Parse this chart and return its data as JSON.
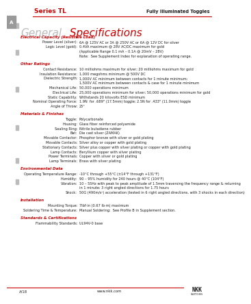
{
  "header_series": "Series TL",
  "header_right": "Fully Illuminated Toggles",
  "tab_label": "A",
  "red_color": "#cc0000",
  "dark_color": "#1a1a1a",
  "gray_color": "#888888",
  "light_gray": "#cccccc",
  "bg_color": "#ffffff",
  "general_gray": "#bbbbbb",
  "general_red": "#cc0000",
  "sections": [
    {
      "title": "Electrical Capacity (Resistive Load)",
      "entries": [
        [
          "Power Level (silver):",
          "6A @ 125V AC or 3A @ 250V AC or 6A @ 12V DC for silver"
        ],
        [
          "Logic Level (gold):",
          "0.4VA maximum @ 28V AC/DC maximum for gold"
        ],
        [
          "",
          "(Applicable Range 0.1 mA – 0.1A @ 20mV – 28V)"
        ],
        [
          "",
          "Note:  See Supplement Index for explanation of operating range."
        ]
      ]
    },
    {
      "title": "Other Ratings",
      "entries": [
        [
          "Contact Resistance:",
          "10 milliohms maximum for silver; 20 milliohms maximum for gold"
        ],
        [
          "Insulation Resistance:",
          "1,000 megohms minimum @ 500V DC"
        ],
        [
          "Dielectric Strength:",
          "1,000V AC minimum between contacts for 1 minute minimum;"
        ],
        [
          "",
          "1,500V AC minimum between contacts & case for 1 minute minimum"
        ],
        [
          "Mechanical Life:",
          "50,000 operations minimum"
        ],
        [
          "Electrical Life:",
          "25,000 operations minimum for silver; 50,000 operations minimum for gold"
        ],
        [
          "Static Capability:",
          "Withstands 20 kilovolts ESD minimum"
        ],
        [
          "Nominal Operating Force:",
          "1.9N  for .689\" (17.5mm) toggle; 2.5N for .433\" (11.0mm) toggle"
        ],
        [
          "Angle of Throw:",
          "25°"
        ]
      ]
    },
    {
      "title": "Materials & Finishes",
      "entries": [
        [
          "Toggle:",
          "Polycarbonate"
        ],
        [
          "Housing:",
          "Glass fiber reinforced polyamide"
        ],
        [
          "Sealing Ring:",
          "Nitrile butadiene rubber"
        ],
        [
          "Bat:",
          "Die cast silver (ZAMAK)"
        ],
        [
          "Movable Contactor:",
          "Phosphor bronze with silver or gold plating"
        ],
        [
          "Movable Contacts:",
          "Silver alloy or copper with gold plating"
        ],
        [
          "Stationary Contacts:",
          "Silver plus copper with silver plating or copper with gold plating"
        ],
        [
          "Lamp Contacts:",
          "Beryllium copper with silver plating"
        ],
        [
          "Power Terminals:",
          "Copper with silver or gold plating"
        ],
        [
          "Lamp Terminals:",
          "Brass with silver plating"
        ]
      ]
    },
    {
      "title": "Environmental Data",
      "entries": [
        [
          "Operating Temperature Range:",
          "-10°C through +55°C (±14°F through +131°F)"
        ],
        [
          "Humidity:",
          "90 – 95% humidity for 240 hours @ 40°C (104°F)"
        ],
        [
          "Vibration:",
          "10 – 55Hz with peak to peak amplitude of 1.5mm traversing the frequency range & returning"
        ],
        [
          "",
          "in 1 minute; 3 right angled directions for 1.75 hours"
        ],
        [
          "Shock:",
          "50G (490m/s²) acceleration (tested in 6 right angled directions, with 3 shocks in each direction)"
        ]
      ]
    },
    {
      "title": "Installation",
      "entries": [
        [
          "Mounting Torque:",
          "7lbf·in (0.67 lb·m) maximum"
        ],
        [
          "Soldering Time & Temperature:",
          "Manual Soldering:  See Profile B in Supplement section."
        ]
      ]
    },
    {
      "title": "Standards & Certifications",
      "entries": [
        [
          "Flammability Standards:",
          "UL94V-0 base"
        ]
      ]
    }
  ],
  "footer_left": "A/18",
  "footer_center": "www.nkk.com"
}
